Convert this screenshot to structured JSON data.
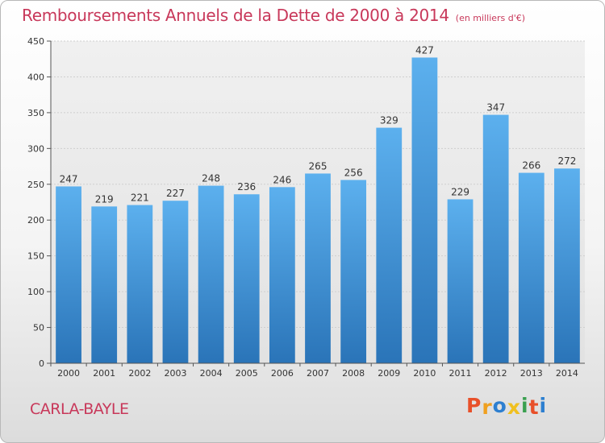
{
  "title": "Remboursements Annuels de la Dette de 2000 à 2014",
  "unit": "(en milliers d'€)",
  "commune": "CARLA-BAYLE",
  "logo": {
    "letters": [
      "P",
      "r",
      "o",
      "x",
      "i",
      "t",
      "i"
    ],
    "colors": [
      "#e8502a",
      "#f0a020",
      "#2d7fd0",
      "#f0c020",
      "#3aa050",
      "#e8502a",
      "#2d7fd0"
    ]
  },
  "chart_data": {
    "type": "bar",
    "categories": [
      "2000",
      "2001",
      "2002",
      "2003",
      "2004",
      "2005",
      "2006",
      "2007",
      "2008",
      "2009",
      "2010",
      "2011",
      "2012",
      "2013",
      "2014"
    ],
    "values": [
      247,
      219,
      221,
      227,
      248,
      236,
      246,
      265,
      256,
      329,
      427,
      229,
      347,
      266,
      272
    ],
    "ylim": [
      0,
      450
    ],
    "yticks": [
      0,
      50,
      100,
      150,
      200,
      250,
      300,
      350,
      400,
      450
    ],
    "grid": true,
    "bar_color": "#3a8fd8"
  }
}
